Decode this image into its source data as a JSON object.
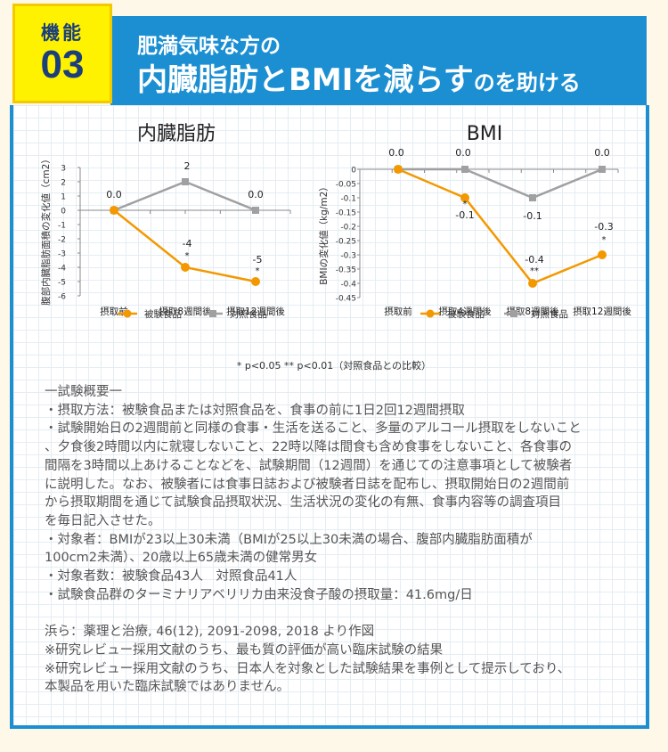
{
  "badge": {
    "label": "機能",
    "number": "03"
  },
  "title": {
    "line1": "肥満気味な方の",
    "line2_main": "内臓脂肪とBMIを減らす",
    "line2_small": "のを助ける"
  },
  "significance_note": "* p<0.05 ** p<0.01（対照食品との比較）",
  "chart_data": [
    {
      "type": "line",
      "title": "内臓脂肪",
      "xlabel": "",
      "ylabel": "腹部内臓脂肪面積の変化値（cm2）",
      "categories": [
        "摂取前",
        "摂取8週間後",
        "摂取12週間後"
      ],
      "ylim": [
        -6,
        3
      ],
      "yticks": [
        "3",
        "2",
        "1",
        "0",
        "-1",
        "-2",
        "-3",
        "-4",
        "-5",
        "-6"
      ],
      "series": [
        {
          "name": "被験食品",
          "color": "#f39800",
          "values": [
            0,
            -4,
            -5
          ],
          "labels": [
            "0.0",
            "-4",
            "-5"
          ],
          "marks": [
            "",
            "*",
            "*"
          ]
        },
        {
          "name": "対照食品",
          "color": "#a0a0a0",
          "values": [
            0,
            2,
            0
          ],
          "labels": [
            "",
            "2",
            "0.0"
          ],
          "marks": [
            "",
            "",
            ""
          ]
        }
      ],
      "legend": "bottom"
    },
    {
      "type": "line",
      "title": "BMI",
      "xlabel": "",
      "ylabel": "BMIの変化値（kg/m2）",
      "categories": [
        "摂取前",
        "摂取4週間後",
        "摂取8週間後",
        "摂取12週間後"
      ],
      "ylim": [
        -0.45,
        0
      ],
      "yticks": [
        "0",
        "-0.05",
        "-0.1",
        "-0.15",
        "-0.2",
        "-0.25",
        "-0.3",
        "-0.35",
        "-0.4",
        "-0.45"
      ],
      "series": [
        {
          "name": "被験食品",
          "color": "#f39800",
          "values": [
            0,
            -0.1,
            -0.4,
            -0.3
          ],
          "labels": [
            "",
            "-0.1",
            "-0.4",
            "-0.3"
          ],
          "marks": [
            "",
            "*",
            "**",
            "*"
          ]
        },
        {
          "name": "対照食品",
          "color": "#a0a0a0",
          "values": [
            0,
            0,
            -0.1,
            0
          ],
          "labels": [
            "0.0",
            "0.0",
            "-0.1",
            "0.0"
          ],
          "marks": [
            "",
            "",
            "",
            ""
          ]
        }
      ],
      "legend": "bottom"
    }
  ],
  "notes": [
    "一試験概要一",
    "・摂取方法：被験食品または対照食品を、食事の前に1日2回12週間摂取",
    "・試験開始日の2週間前と同様の食事・生活を送ること、多量のアルコール摂取をしないこと",
    "、夕食後2時間以内に就寝しないこと、22時以降は間食も含め食事をしないこと、各食事の",
    "間隔を3時間以上あけることなどを、試験期間（12週間）を通じての注意事項として被験者",
    "に説明した。なお、被験者には食事日誌および被験者日誌を配布し、摂取開始日の2週間前",
    "から摂取期間を通じて試験食品摂取状況、生活状況の変化の有無、食事内容等の調査項目",
    "を毎日記入させた。",
    "・対象者：BMIが23以上30未満（BMIが25以上30未満の場合、腹部内臓脂肪面積が",
    "100cm2未満）、20歳以上65歳未満の健常男女",
    "・対象者数：被験食品43人　対照食品41人",
    "・試験食品群のターミナリアベリリカ由来没食子酸の摂取量：41.6mg/日"
  ],
  "references": [
    "浜ら：薬理と治療, 46(12), 2091-2098, 2018 より作図",
    "※研究レビュー採用文献のうち、最も質の評価が高い臨床試験の結果",
    "※研究レビュー採用文献のうち、日本人を対象とした試験結果を事例として提示しており、",
    "本製品を用いた臨床試験ではありません。"
  ]
}
